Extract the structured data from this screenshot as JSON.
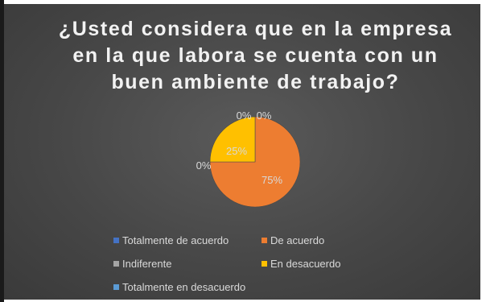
{
  "title_lines": [
    "¿Usted considera que en la empresa",
    "en la que labora se cuenta con un",
    "buen ambiente de trabajo?"
  ],
  "colors": {
    "totalmente_de_acuerdo": "#4472c4",
    "de_acuerdo": "#ed7d31",
    "indiferente": "#a5a5a5",
    "en_desacuerdo": "#ffc000",
    "totalmente_en_desacuerdo": "#5b9bd5"
  },
  "chart_data": {
    "type": "pie",
    "title": "¿Usted considera que en la empresa en la que labora se cuenta con un buen ambiente de trabajo?",
    "categories": [
      "Totalmente de acuerdo",
      "De acuerdo",
      "Indiferente",
      "En desacuerdo",
      "Totalmente en desacuerdo"
    ],
    "values": [
      0,
      75,
      0,
      25,
      0
    ],
    "labels": [
      "0%",
      "75%",
      "0%",
      "25%",
      "0%"
    ],
    "legend_position": "bottom"
  }
}
